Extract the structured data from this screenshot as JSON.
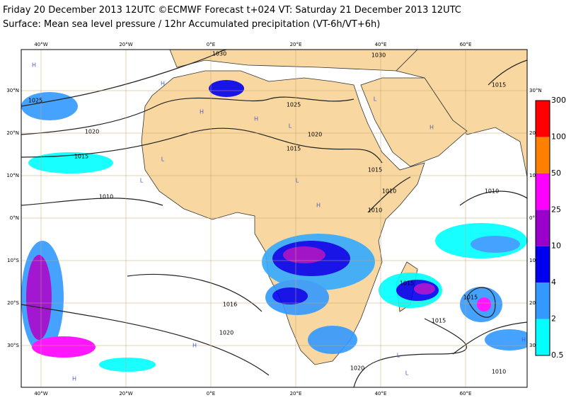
{
  "header": {
    "line1": "Friday 20 December 2013 12UTC ©ECMWF Forecast t+024 VT: Saturday 21 December 2013 12UTC",
    "line2": "Surface: Mean sea level pressure / 12hr Accumulated precipitation (VT-6h/VT+6h)"
  },
  "longitude_labels": [
    "40°W",
    "20°W",
    "0°E",
    "20°E",
    "40°E",
    "60°E"
  ],
  "latitude_labels": [
    "30°N",
    "20°N",
    "10°N",
    "0°N",
    "10°S",
    "20°S",
    "30°S"
  ],
  "colorbar": {
    "levels": [
      "300",
      "100",
      "50",
      "25",
      "10",
      "4",
      "2",
      "0.5"
    ]
  },
  "isobar_labels": [
    "1030",
    "1030",
    "1025",
    "1020",
    "1015",
    "1010",
    "1025",
    "1020",
    "1015",
    "1015",
    "1010",
    "1010",
    "1010",
    "1015",
    "1016",
    "1020",
    "1015",
    "1015",
    "1015",
    "1020",
    "1010"
  ],
  "pressure_centres": [
    "H",
    "H",
    "H",
    "H",
    "H",
    "H",
    "L",
    "L",
    "L",
    "L",
    "L",
    "H",
    "H",
    "L",
    "L",
    "H"
  ]
}
